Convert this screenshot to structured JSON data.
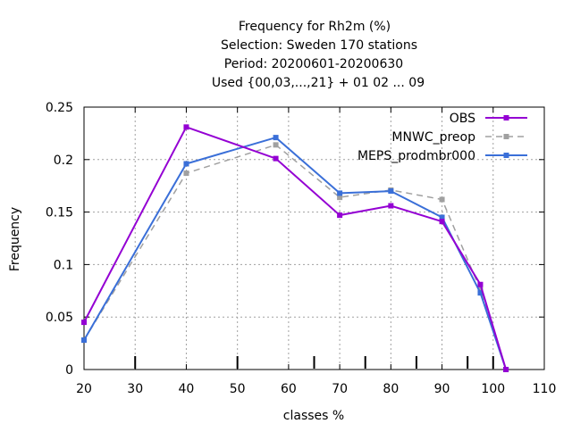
{
  "chart_data": {
    "type": "line",
    "title_lines": [
      "Frequency  for Rh2m (%)",
      "Selection: Sweden    170 stations",
      "Period: 20200601-20200630",
      "Used {00,03,...,21} + 01 02 ... 09"
    ],
    "xlabel": "classes %",
    "ylabel": "Frequency",
    "xlim": [
      20,
      110
    ],
    "ylim": [
      0,
      0.25
    ],
    "xticks": [
      20,
      30,
      40,
      50,
      60,
      70,
      80,
      90,
      100,
      110
    ],
    "yticks": [
      0,
      0.05,
      0.1,
      0.15,
      0.2,
      0.25
    ],
    "xtick_labels": [
      "20",
      "30",
      "40",
      "50",
      "60",
      "70",
      "80",
      "90",
      "100",
      "110"
    ],
    "ytick_labels": [
      "0",
      "0.05",
      "0.1",
      "0.15",
      "0.2",
      "0.25"
    ],
    "class_markers": [
      30,
      50,
      65,
      75,
      85,
      95,
      100
    ],
    "grid": true,
    "legend_position": "top-right",
    "series": [
      {
        "name": "OBS",
        "color": "#9400d3",
        "dash": "solid",
        "x": [
          20,
          40,
          57.5,
          70,
          80,
          90,
          97.5,
          102.5
        ],
        "y": [
          0.045,
          0.231,
          0.201,
          0.147,
          0.156,
          0.141,
          0.081,
          0.0
        ]
      },
      {
        "name": "MNWC_preop",
        "color": "#a0a0a0",
        "dash": "dashed",
        "x": [
          20,
          40,
          57.5,
          70,
          80,
          90,
          97.5,
          102.5
        ],
        "y": [
          0.028,
          0.187,
          0.214,
          0.164,
          0.171,
          0.162,
          0.076,
          0.0
        ]
      },
      {
        "name": "MEPS_prodmbr000",
        "color": "#3a6fd8",
        "dash": "solid",
        "x": [
          20,
          40,
          57.5,
          70,
          80,
          90,
          97.5,
          102.5
        ],
        "y": [
          0.028,
          0.196,
          0.221,
          0.168,
          0.17,
          0.145,
          0.073,
          0.0
        ]
      }
    ]
  }
}
